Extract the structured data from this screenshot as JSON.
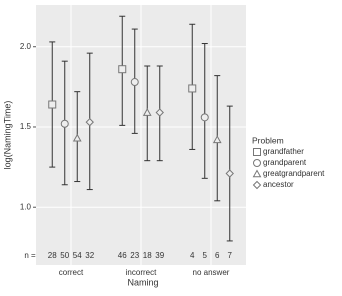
{
  "chart_data": {
    "type": "errorpoint",
    "x_label": "Naming",
    "y_label": "log(NamingTime)",
    "categories": [
      "correct",
      "incorrect",
      "no answer"
    ],
    "n_label": "n = ",
    "legend_title": "Problem",
    "ylim": [
      0.64,
      2.26
    ],
    "yticks": [
      {
        "value": 1,
        "label": "1.0"
      },
      {
        "value": 1.5,
        "label": "1.5"
      },
      {
        "value": 2,
        "label": "2.0"
      }
    ],
    "grid": true,
    "legend": "right",
    "series": [
      {
        "name": "grandfather",
        "shape": "square",
        "values": [
          1.64,
          1.86,
          1.74
        ],
        "lower": [
          1.25,
          1.51,
          1.36
        ],
        "upper": [
          2.03,
          2.19,
          2.14
        ],
        "n": [
          28,
          46,
          4
        ]
      },
      {
        "name": "grandparent",
        "shape": "circle",
        "values": [
          1.52,
          1.78,
          1.56
        ],
        "lower": [
          1.14,
          1.46,
          1.18
        ],
        "upper": [
          1.91,
          2.11,
          2.02
        ],
        "n": [
          50,
          23,
          5
        ]
      },
      {
        "name": "greatgrandparent",
        "shape": "triangle",
        "values": [
          1.43,
          1.59,
          1.42
        ],
        "lower": [
          1.16,
          1.29,
          1.04
        ],
        "upper": [
          1.72,
          1.88,
          1.82
        ],
        "n": [
          54,
          18,
          6
        ]
      },
      {
        "name": "ancestor",
        "shape": "diamond",
        "values": [
          1.53,
          1.59,
          1.21
        ],
        "lower": [
          1.11,
          1.29,
          0.79
        ],
        "upper": [
          1.96,
          1.88,
          1.63
        ],
        "n": [
          32,
          39,
          7
        ]
      }
    ]
  }
}
